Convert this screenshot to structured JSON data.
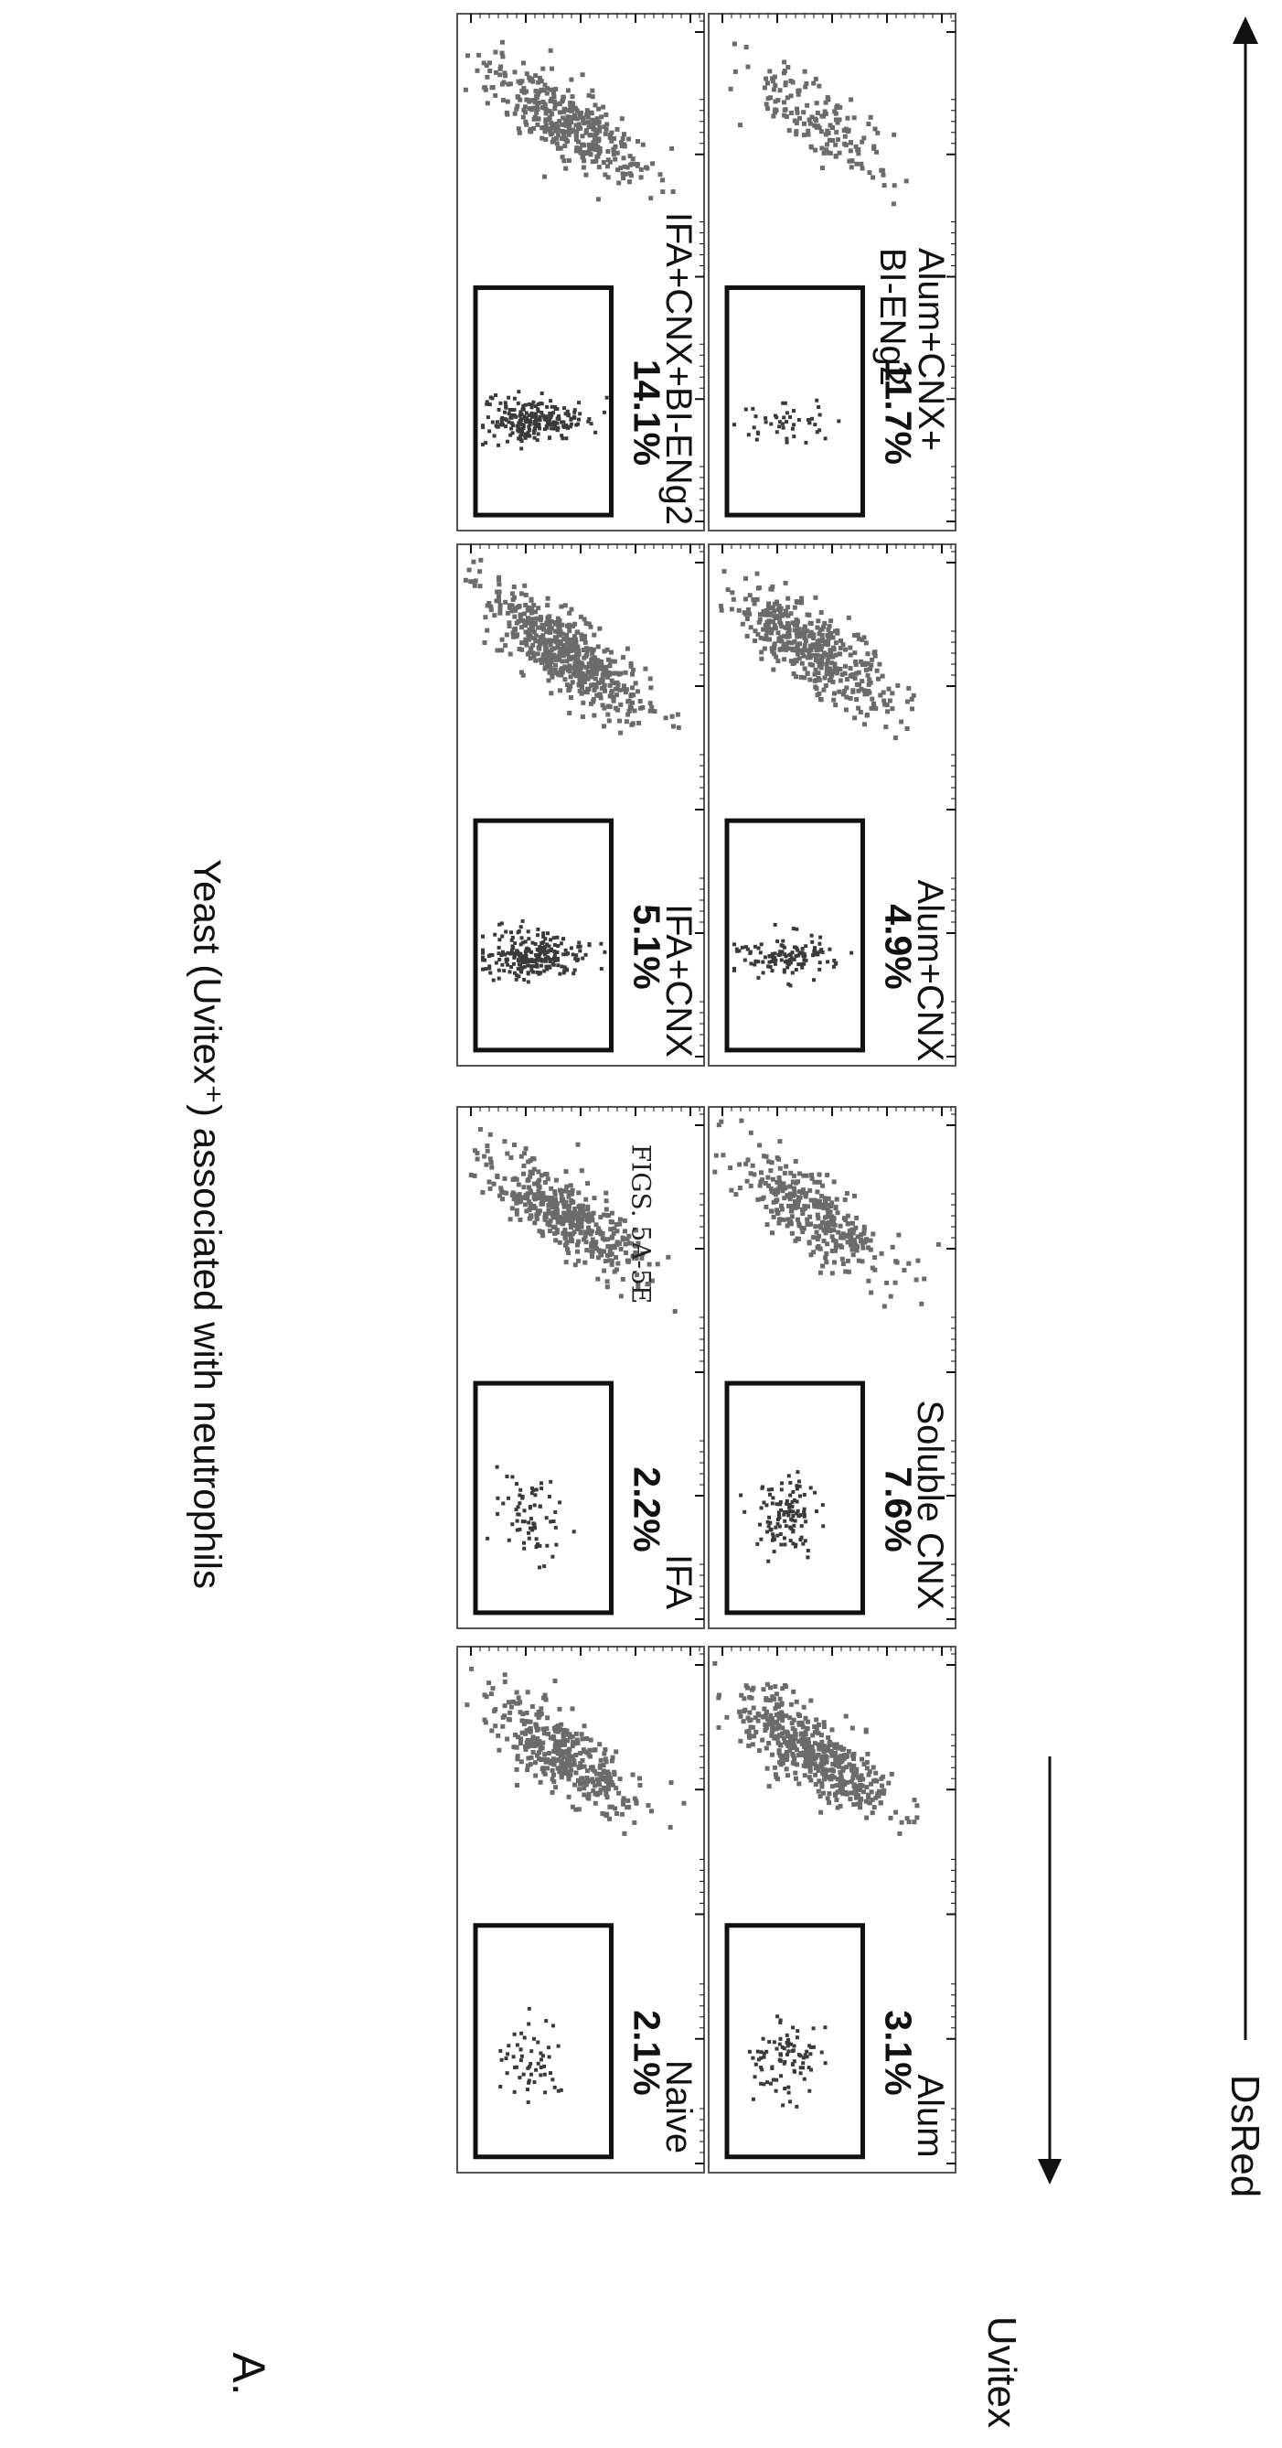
{
  "figure_heading": "FIGS. 5A-5E",
  "panel_letter": "A.",
  "title": "Yeast (Uvitex⁺) associated with neutrophils",
  "x_axis_label": "DsRed",
  "y_axis_label": "Uvitex",
  "chart_data": {
    "type": "scatter",
    "subtype": "flow-cytometry-dot-plot-grid",
    "title": "Yeast (Uvitex⁺) associated with neutrophils",
    "xlabel": "DsRed",
    "ylabel": "Uvitex",
    "xscale": "log",
    "yscale": "log",
    "panels": [
      {
        "label": "Naive",
        "gate_percent": "2.1%"
      },
      {
        "label": "IFA",
        "gate_percent": "2.2%"
      },
      {
        "label": "IFA+CNX",
        "gate_percent": "5.1%"
      },
      {
        "label": "IFA+CNX+BI-ENg2",
        "gate_percent": "14.1%"
      },
      {
        "label": "Alum",
        "gate_percent": "3.1%"
      },
      {
        "label": "Soluble CNX",
        "gate_percent": "7.6%"
      },
      {
        "label": "Alum+CNX",
        "gate_percent": "4.9%"
      },
      {
        "label": "Alum+CNX+ BI-ENg2",
        "gate_percent": "11.7%"
      }
    ]
  },
  "colors": {
    "ink": "#111111",
    "dots": "#6b6b6b",
    "gated_dots": "#3a3a3a",
    "frame": "#555555"
  }
}
